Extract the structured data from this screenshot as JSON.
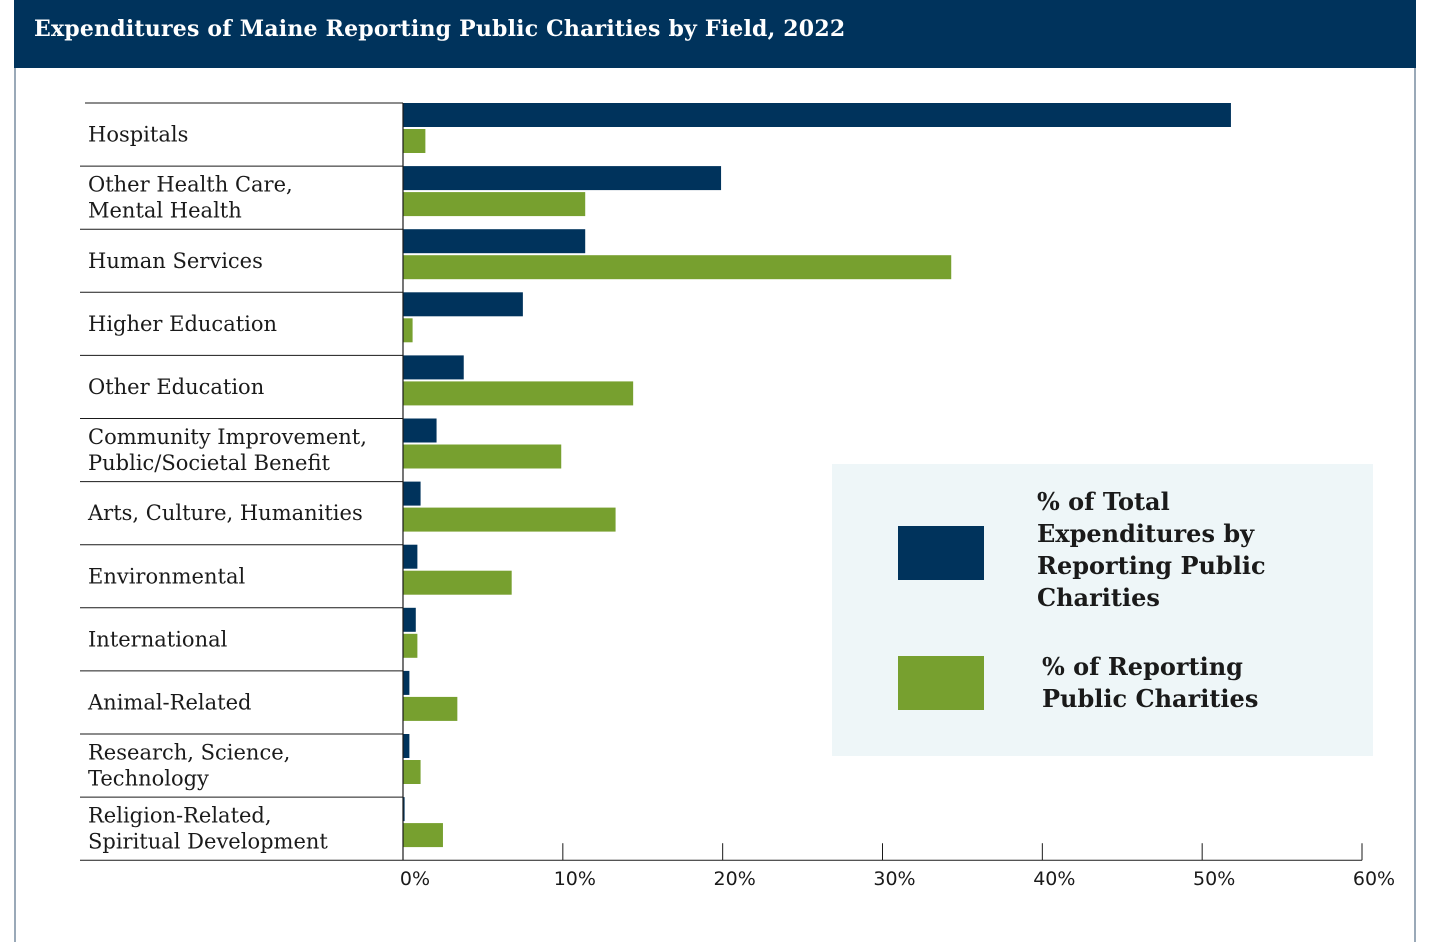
{
  "header": {
    "title": "Expenditures of Maine Reporting Public Charities by Field, 2022"
  },
  "colors": {
    "header_bg": "#00335c",
    "expenditures": "#00335c",
    "charities": "#77a02f",
    "legend_bg": "#eef6f8"
  },
  "legend": {
    "items": [
      {
        "label": "% of Total Expenditures by Reporting Public Charities",
        "color": "#00335c"
      },
      {
        "label": "% of Reporting Public Charities",
        "color": "#77a02f"
      }
    ]
  },
  "chart_data": {
    "type": "bar",
    "orientation": "horizontal",
    "title": "Expenditures of Maine Reporting Public Charities by Field, 2022",
    "categories": [
      [
        "Hospitals"
      ],
      [
        "Other Health Care,",
        "Mental Health"
      ],
      [
        "Human Services"
      ],
      [
        "Higher Education"
      ],
      [
        "Other Education"
      ],
      [
        "Community Improvement,",
        "Public/Societal Benefit"
      ],
      [
        "Arts, Culture, Humanities"
      ],
      [
        "Environmental"
      ],
      [
        "International"
      ],
      [
        "Animal-Related"
      ],
      [
        "Research, Science,",
        "Technology"
      ],
      [
        "Religion-Related,",
        "Spiritual Development"
      ]
    ],
    "series": [
      {
        "name": "% of Total Expenditures by Reporting Public Charities",
        "color": "#00335c",
        "values": [
          51.8,
          19.9,
          11.4,
          7.5,
          3.8,
          2.1,
          1.1,
          0.9,
          0.8,
          0.4,
          0.4,
          0.1
        ]
      },
      {
        "name": "% of Reporting Public Charities",
        "color": "#77a02f",
        "values": [
          1.4,
          11.4,
          34.3,
          0.6,
          14.4,
          9.9,
          13.3,
          6.8,
          0.9,
          3.4,
          1.1,
          2.5
        ]
      }
    ],
    "xlim": [
      0,
      60
    ],
    "xticks": [
      "0%",
      "10%",
      "20%",
      "30%",
      "40%",
      "50%",
      "60%"
    ],
    "grid": false,
    "legend_position": "right-middle"
  }
}
